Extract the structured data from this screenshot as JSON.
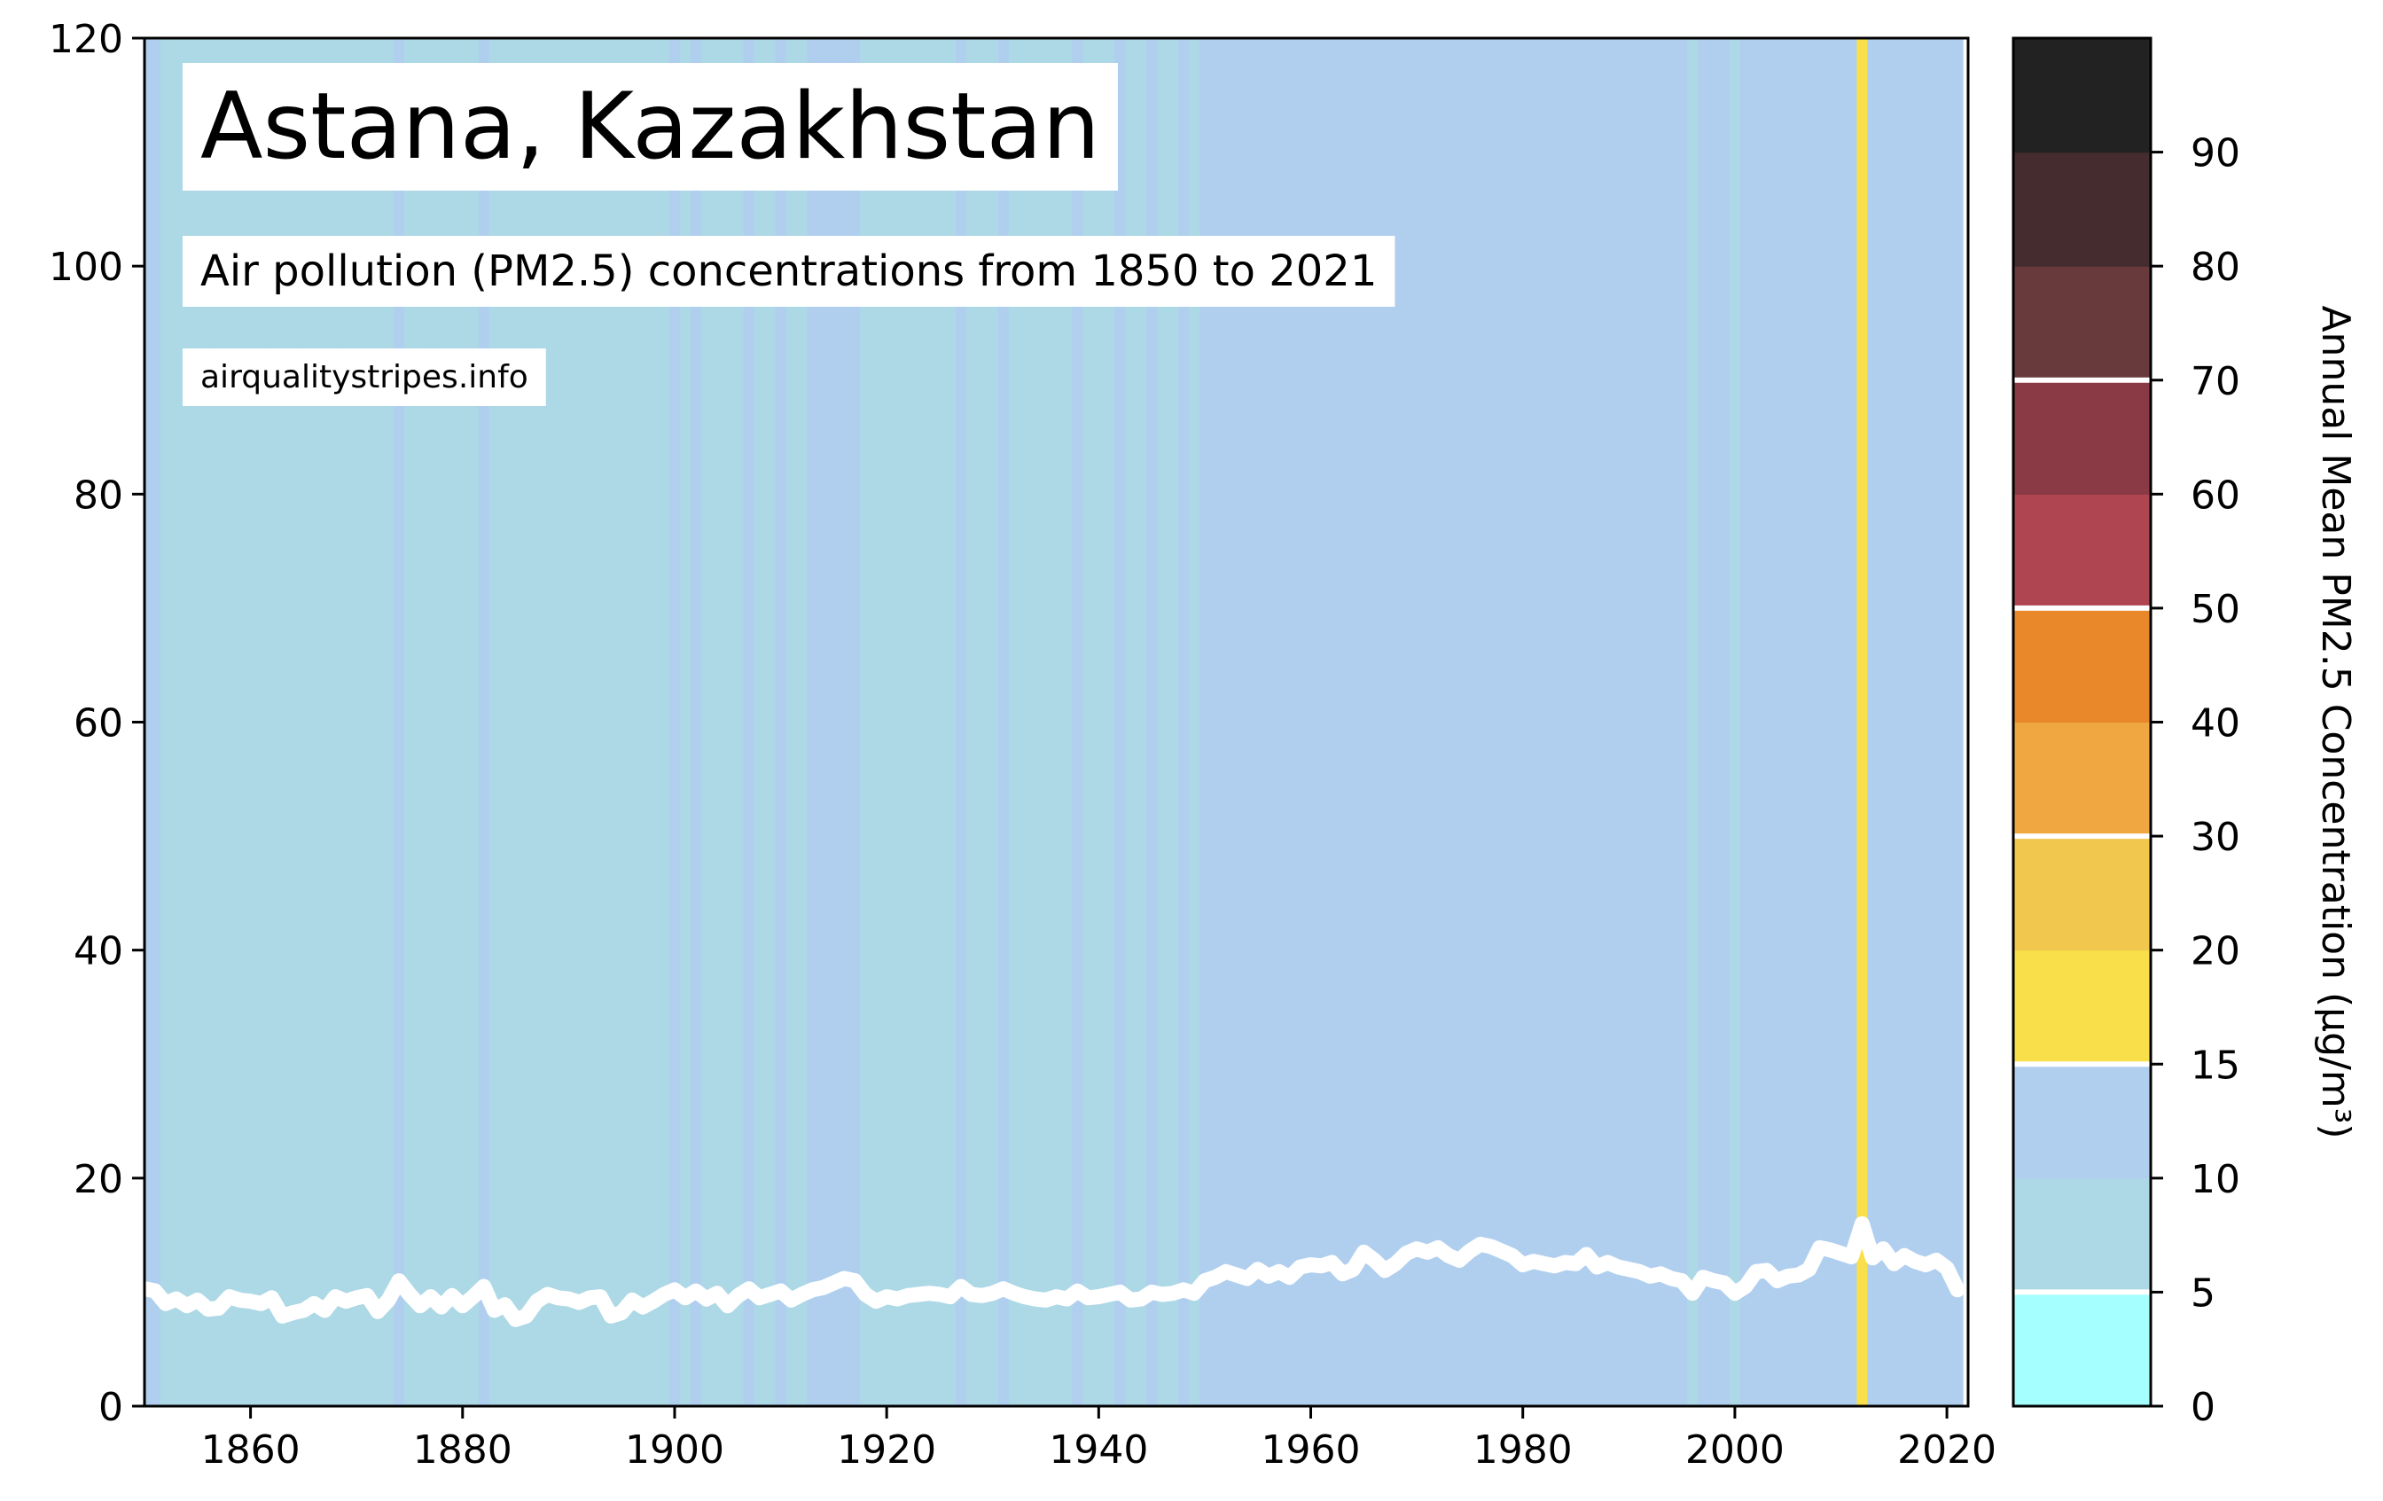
{
  "chart_data": {
    "type": "stripes",
    "title": "Astana, Kazakhstan",
    "subtitle": "Air pollution (PM2.5) concentrations from 1850 to 2021",
    "source": "airqualitystripes.info",
    "x": [
      1850,
      1851,
      1852,
      1853,
      1854,
      1855,
      1856,
      1857,
      1858,
      1859,
      1860,
      1861,
      1862,
      1863,
      1864,
      1865,
      1866,
      1867,
      1868,
      1869,
      1870,
      1871,
      1872,
      1873,
      1874,
      1875,
      1876,
      1877,
      1878,
      1879,
      1880,
      1881,
      1882,
      1883,
      1884,
      1885,
      1886,
      1887,
      1888,
      1889,
      1890,
      1891,
      1892,
      1893,
      1894,
      1895,
      1896,
      1897,
      1898,
      1899,
      1900,
      1901,
      1902,
      1903,
      1904,
      1905,
      1906,
      1907,
      1908,
      1909,
      1910,
      1911,
      1912,
      1913,
      1914,
      1915,
      1916,
      1917,
      1918,
      1919,
      1920,
      1921,
      1922,
      1923,
      1924,
      1925,
      1926,
      1927,
      1928,
      1929,
      1930,
      1931,
      1932,
      1933,
      1934,
      1935,
      1936,
      1937,
      1938,
      1939,
      1940,
      1941,
      1942,
      1943,
      1944,
      1945,
      1946,
      1947,
      1948,
      1949,
      1950,
      1951,
      1952,
      1953,
      1954,
      1955,
      1956,
      1957,
      1958,
      1959,
      1960,
      1961,
      1962,
      1963,
      1964,
      1965,
      1966,
      1967,
      1968,
      1969,
      1970,
      1971,
      1972,
      1973,
      1974,
      1975,
      1976,
      1977,
      1978,
      1979,
      1980,
      1981,
      1982,
      1983,
      1984,
      1985,
      1986,
      1987,
      1988,
      1989,
      1990,
      1991,
      1992,
      1993,
      1994,
      1995,
      1996,
      1997,
      1998,
      1999,
      2000,
      2001,
      2002,
      2003,
      2004,
      2005,
      2006,
      2007,
      2008,
      2009,
      2010,
      2011,
      2012,
      2013,
      2014,
      2015,
      2016,
      2017,
      2018,
      2019,
      2020,
      2021
    ],
    "values": [
      10.3,
      10.1,
      9.0,
      9.4,
      8.8,
      9.3,
      8.5,
      8.6,
      9.6,
      9.3,
      9.2,
      9.0,
      9.5,
      7.9,
      8.2,
      8.4,
      9.0,
      8.4,
      9.6,
      9.2,
      9.5,
      9.7,
      8.3,
      9.3,
      11.0,
      9.8,
      8.8,
      9.6,
      8.7,
      9.7,
      8.8,
      9.6,
      10.5,
      8.4,
      8.9,
      7.6,
      7.9,
      9.2,
      9.8,
      9.5,
      9.4,
      9.1,
      9.5,
      9.6,
      7.9,
      8.2,
      9.3,
      8.7,
      9.2,
      9.8,
      10.2,
      9.5,
      10.1,
      9.4,
      9.9,
      8.8,
      9.7,
      10.3,
      9.5,
      9.8,
      10.1,
      9.3,
      9.8,
      10.2,
      10.4,
      10.8,
      11.2,
      11.0,
      9.8,
      9.2,
      9.6,
      9.4,
      9.7,
      9.8,
      9.9,
      9.8,
      9.6,
      10.5,
      9.8,
      9.7,
      9.9,
      10.3,
      9.9,
      9.6,
      9.4,
      9.3,
      9.6,
      9.4,
      10.1,
      9.5,
      9.6,
      9.8,
      10.0,
      9.3,
      9.4,
      10.0,
      9.8,
      9.9,
      10.2,
      9.9,
      11.0,
      11.3,
      11.8,
      11.5,
      11.2,
      12.0,
      11.4,
      11.8,
      11.3,
      12.2,
      12.4,
      12.3,
      12.6,
      11.6,
      12.0,
      13.5,
      12.8,
      11.9,
      12.5,
      13.4,
      13.8,
      13.5,
      13.9,
      13.2,
      12.8,
      13.6,
      14.2,
      14.0,
      13.6,
      13.2,
      12.4,
      12.7,
      12.5,
      12.3,
      12.6,
      12.5,
      13.3,
      12.2,
      12.6,
      12.2,
      12.0,
      11.8,
      11.4,
      11.6,
      11.2,
      11.0,
      9.9,
      11.3,
      11.0,
      10.8,
      9.9,
      10.5,
      11.8,
      11.9,
      11.0,
      11.4,
      11.5,
      12.0,
      13.9,
      13.7,
      13.4,
      13.1,
      16.0,
      13.0,
      13.8,
      12.5,
      13.2,
      12.7,
      12.4,
      12.8,
      12.1,
      10.2
    ],
    "line_color": "#ffffff",
    "xlim": [
      1850,
      2022
    ],
    "xticks": [
      1860,
      1880,
      1900,
      1920,
      1940,
      1960,
      1980,
      2000,
      2020
    ],
    "ylim": [
      0,
      120
    ],
    "yticks": [
      0,
      20,
      40,
      60,
      80,
      100,
      120
    ],
    "colorbar": {
      "label": "Annual Mean PM2.5 Concentration (µg/m³)",
      "bounds": [
        0,
        5,
        10,
        15,
        20,
        30,
        40,
        50,
        60,
        70,
        80,
        90,
        100
      ],
      "colors": [
        "#a6ffff",
        "#add8e6",
        "#b0cfee",
        "#f9e04a",
        "#f2c74e",
        "#f0a742",
        "#e8882a",
        "#ae4551",
        "#893a44",
        "#683a3b",
        "#452c2e",
        "#222222"
      ],
      "ticks": [
        0,
        5,
        10,
        15,
        20,
        30,
        40,
        50,
        60,
        70,
        80,
        90
      ],
      "guidelines": [
        5,
        15,
        30,
        50,
        70
      ]
    }
  }
}
